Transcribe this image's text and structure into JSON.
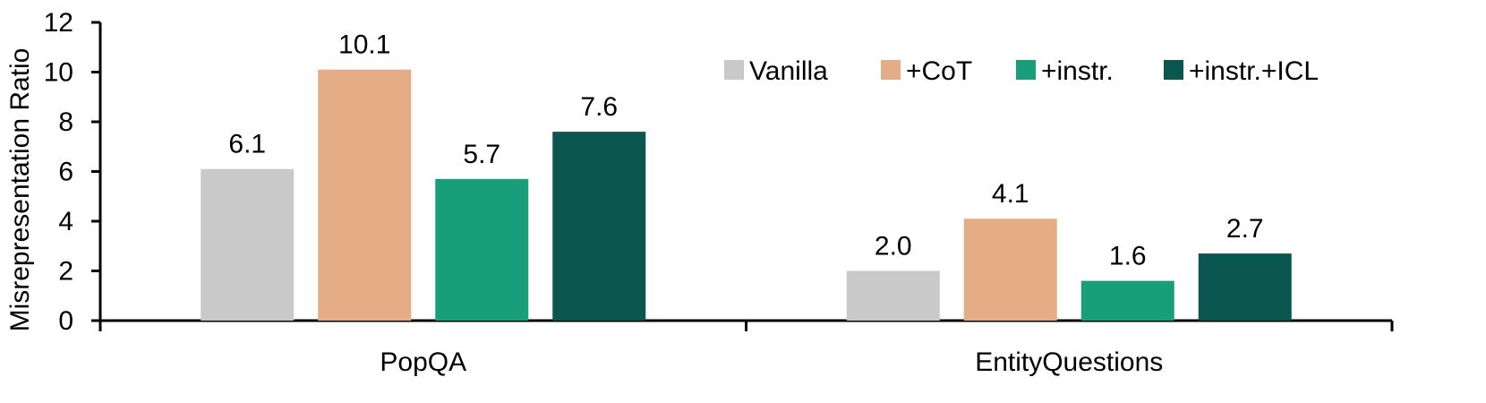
{
  "chart_data": {
    "type": "bar",
    "title": "",
    "xlabel": "",
    "ylabel": "Misrepresentation Ratio",
    "ylim": [
      0,
      12
    ],
    "yticks": [
      0,
      2,
      4,
      6,
      8,
      10,
      12
    ],
    "categories": [
      "PopQA",
      "EntityQuestions"
    ],
    "series": [
      {
        "name": "Vanilla",
        "color": "#c9c9c9",
        "values": [
          6.1,
          2.0
        ],
        "labels": [
          "6.1",
          "2.0"
        ]
      },
      {
        "name": "+CoT",
        "color": "#e5ad85",
        "values": [
          10.1,
          4.1
        ],
        "labels": [
          "10.1",
          "4.1"
        ]
      },
      {
        "name": "+instr.",
        "color": "#199e7a",
        "values": [
          5.7,
          1.6
        ],
        "labels": [
          "5.7",
          "1.6"
        ]
      },
      {
        "name": "+instr.+ICL",
        "color": "#0b5750",
        "values": [
          7.6,
          2.7
        ],
        "labels": [
          "7.6",
          "2.7"
        ]
      }
    ],
    "legend": {
      "position": "top-right"
    },
    "grid": false
  }
}
